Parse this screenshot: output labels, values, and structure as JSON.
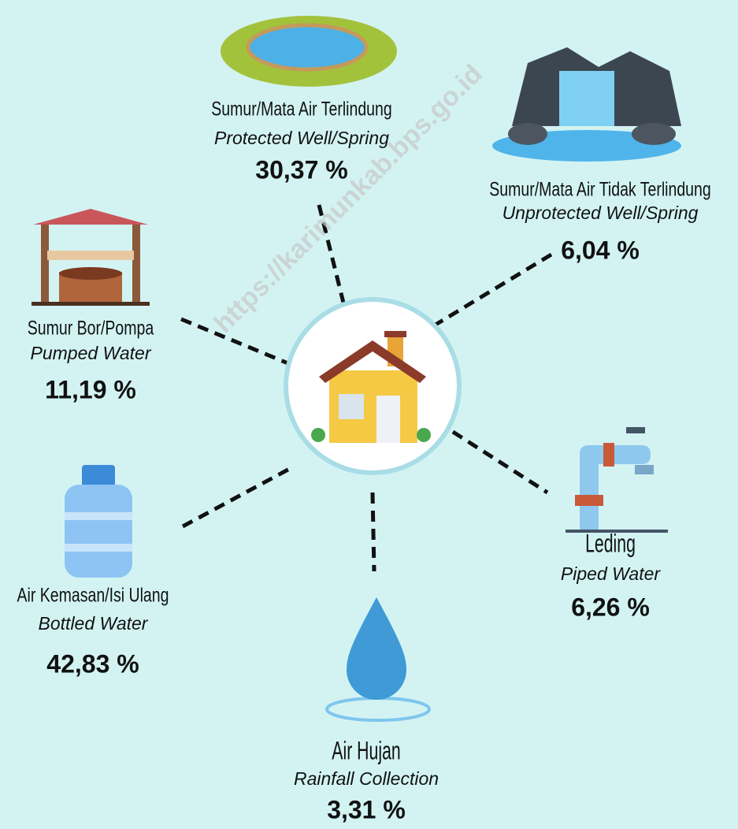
{
  "watermark": "https://karimunkab.bps.go.id",
  "nodes": [
    {
      "label_id": "Sumur/Mata Air Terlindung",
      "label_en": "Protected Well/Spring",
      "value": "30,37 %"
    },
    {
      "label_id": "Sumur/Mata Air Tidak Terlindung",
      "label_en": "Unprotected Well/Spring",
      "value": "6,04 %"
    },
    {
      "label_id": "Sumur Bor/Pompa",
      "label_en": "Pumped Water",
      "value": "11,19 %"
    },
    {
      "label_id": "Air Kemasan/Isi Ulang",
      "label_en": "Bottled Water",
      "value": "42,83 %"
    },
    {
      "label_id": "Air Hujan",
      "label_en": "Rainfall Collection",
      "value": "3,31 %"
    },
    {
      "label_id": "Leding",
      "label_en": "Piped Water",
      "value": "6,26 %"
    }
  ]
}
